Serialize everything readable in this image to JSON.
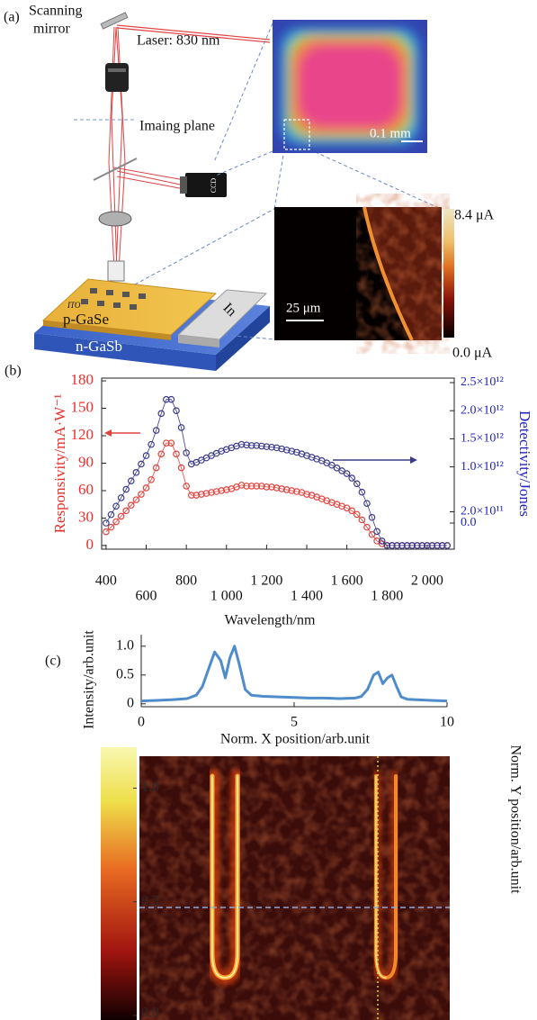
{
  "panel_a": {
    "label": "(a)",
    "scanning_mirror": [
      "Scanning",
      "mirror"
    ],
    "laser": "Laser: 830 nm",
    "imaging_plane": "Imaing plane",
    "ccd": "CCD",
    "ito": "ITO",
    "p_layer": "p-GaSe",
    "n_layer": "n-GaSb",
    "contact": "In",
    "scale_bar_top": "0.1 mm",
    "scale_bar_bottom": "25 μm",
    "colorbar_max": "8.4 μA",
    "colorbar_min": "0.0 μA"
  },
  "chart_data": [
    {
      "type": "line",
      "panel_label": "(b)",
      "markers": "open-circle",
      "x_label": "Wavelength/nm",
      "y_label": "Responsivity/mA·W⁻¹",
      "y2_label": "Detectivity/Jones",
      "x": [
        400,
        425,
        450,
        475,
        500,
        525,
        550,
        575,
        600,
        625,
        650,
        675,
        700,
        725,
        750,
        775,
        800,
        825,
        850,
        875,
        900,
        925,
        950,
        975,
        1000,
        1025,
        1050,
        1075,
        1100,
        1125,
        1150,
        1175,
        1200,
        1225,
        1250,
        1275,
        1300,
        1325,
        1350,
        1375,
        1400,
        1425,
        1450,
        1475,
        1500,
        1525,
        1550,
        1575,
        1600,
        1625,
        1650,
        1675,
        1700,
        1725,
        1750,
        1775,
        1800,
        1825,
        1850,
        1875,
        1900,
        1925,
        1950,
        1975,
        2000,
        2025,
        2050,
        2075,
        2100
      ],
      "series": [
        {
          "color": "#e0443f",
          "y_color": "#e8302c",
          "values": [
            15,
            20,
            26,
            32,
            38,
            44,
            50,
            56,
            63,
            72,
            85,
            100,
            112,
            112,
            100,
            85,
            65,
            55,
            55,
            56,
            57,
            58,
            59,
            60,
            61,
            62,
            64,
            66,
            65,
            65,
            65,
            65,
            64,
            64,
            63,
            62,
            61,
            60,
            59,
            58,
            56,
            55,
            53,
            51,
            49,
            47,
            45,
            43,
            41,
            38,
            34,
            28,
            20,
            12,
            5,
            2,
            0,
            0,
            0,
            0,
            0,
            0,
            0,
            0,
            0,
            0,
            0,
            0,
            0
          ]
        },
        {
          "color": "#3b3b8a",
          "y_color": "#2424c0",
          "axis": "y2",
          "values": [
            0,
            150000000000.0,
            300000000000.0,
            450000000000.0,
            600000000000.0,
            750000000000.0,
            900000000000.0,
            1050000000000.0,
            1200000000000.0,
            1400000000000.0,
            1650000000000.0,
            1950000000000.0,
            2200000000000.0,
            2200000000000.0,
            2000000000000.0,
            1700000000000.0,
            1250000000000.0,
            1050000000000.0,
            1080000000000.0,
            1120000000000.0,
            1160000000000.0,
            1200000000000.0,
            1240000000000.0,
            1280000000000.0,
            1310000000000.0,
            1340000000000.0,
            1370000000000.0,
            1400000000000.0,
            1390000000000.0,
            1380000000000.0,
            1380000000000.0,
            1370000000000.0,
            1360000000000.0,
            1350000000000.0,
            1340000000000.0,
            1320000000000.0,
            1300000000000.0,
            1280000000000.0,
            1260000000000.0,
            1230000000000.0,
            1200000000000.0,
            1170000000000.0,
            1140000000000.0,
            1110000000000.0,
            1070000000000.0,
            1030000000000.0,
            980000000000.0,
            930000000000.0,
            880000000000.0,
            800000000000.0,
            700000000000.0,
            550000000000.0,
            350000000000.0,
            100000000000.0,
            -150000000000.0,
            -320000000000.0,
            -400000000000.0,
            -400000000000.0,
            -400000000000.0,
            -400000000000.0,
            -400000000000.0,
            -400000000000.0,
            -400000000000.0,
            -400000000000.0,
            -400000000000.0,
            -400000000000.0,
            -400000000000.0,
            -400000000000.0,
            -400000000000.0
          ]
        }
      ],
      "xlim": [
        378,
        2135
      ],
      "xticks": [
        400,
        600,
        800,
        {
          "value": 1000,
          "label": "1 000"
        },
        {
          "value": 1200,
          "label": "1 200"
        },
        {
          "value": 1400,
          "label": "1 400"
        },
        {
          "value": 1600,
          "label": "1 600"
        },
        {
          "value": 1800,
          "label": "1 800"
        },
        {
          "value": 2000,
          "label": "2 000"
        }
      ],
      "ylim": [
        -4,
        183
      ],
      "yticks": [
        0,
        30,
        60,
        90,
        120,
        150,
        180
      ],
      "y2lim": [
        -465000000000.0,
        2580000000000.0
      ],
      "y2ticks": [
        {
          "value": 0,
          "label": "0.0"
        },
        {
          "value": 200000000000.0,
          "label": "2.0×10¹¹"
        },
        {
          "value": 1000000000000.0,
          "label": "1.0×10¹²"
        },
        {
          "value": 1500000000000.0,
          "label": "1.5×10¹²"
        },
        {
          "value": 2000000000000.0,
          "label": "2.0×10¹²"
        },
        {
          "value": 2500000000000.0,
          "label": "2.5×10¹²"
        }
      ]
    },
    {
      "type": "line",
      "panel_label": "(c)",
      "x_label": "Norm. X position/arb.unit",
      "y_label": "Intensity/arb.unit",
      "x": [
        0,
        0.5,
        1,
        1.5,
        1.8,
        2.0,
        2.2,
        2.4,
        2.6,
        2.75,
        2.9,
        3.05,
        3.2,
        3.4,
        3.6,
        4,
        4.5,
        5,
        5.5,
        6,
        6.5,
        7,
        7.2,
        7.4,
        7.6,
        7.75,
        7.9,
        8.05,
        8.2,
        8.35,
        8.5,
        8.7,
        9,
        9.5,
        10
      ],
      "series": [
        {
          "color": "#4f8ccc",
          "values": [
            0.05,
            0.06,
            0.07,
            0.09,
            0.15,
            0.3,
            0.6,
            0.9,
            0.75,
            0.45,
            0.8,
            1.0,
            0.7,
            0.25,
            0.15,
            0.13,
            0.12,
            0.11,
            0.1,
            0.1,
            0.09,
            0.1,
            0.13,
            0.25,
            0.5,
            0.55,
            0.35,
            0.45,
            0.5,
            0.3,
            0.12,
            0.08,
            0.07,
            0.06,
            0.05
          ]
        }
      ],
      "xlim": [
        0,
        10
      ],
      "xticks": [
        0,
        5,
        10
      ],
      "ylim": [
        -0.05,
        1.2
      ],
      "yticks": [
        0,
        0.5,
        {
          "value": 1,
          "label": "1.0"
        }
      ]
    }
  ],
  "panel_c_map": {
    "y_label": "Norm. Y position/arb.unit",
    "colorbar_lim": [
      -0.02,
      1.18
    ],
    "colorbar_ticks": [
      {
        "value": 1,
        "label": "1.0"
      },
      {
        "value": 0.5,
        "label": "0.5"
      },
      {
        "value": 0,
        "label": "0.0"
      }
    ]
  }
}
